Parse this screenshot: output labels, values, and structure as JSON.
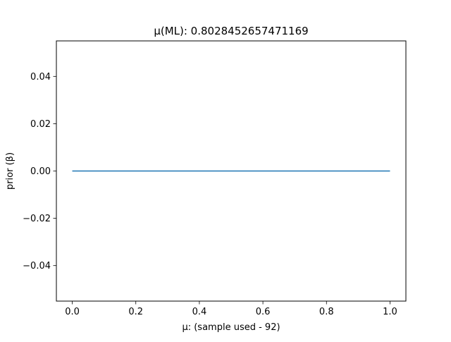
{
  "figure": {
    "background": "#ffffff"
  },
  "chart_data": {
    "type": "line",
    "title": "μ(ML): 0.8028452657471169",
    "xlabel": "μ: (sample used - 92)",
    "ylabel": "prior (β)",
    "xlim": [
      -0.05,
      1.05
    ],
    "ylim": [
      -0.055,
      0.055
    ],
    "xticks": [
      0.0,
      0.2,
      0.4,
      0.6,
      0.8,
      1.0
    ],
    "xtick_labels": [
      "0.0",
      "0.2",
      "0.4",
      "0.6",
      "0.8",
      "1.0"
    ],
    "yticks": [
      -0.04,
      -0.02,
      0.0,
      0.02,
      0.04
    ],
    "ytick_labels": [
      "−0.04",
      "−0.02",
      "0.00",
      "0.02",
      "0.04"
    ],
    "grid": false,
    "series": [
      {
        "color": "#1f77b4",
        "x": [
          0.0,
          1.0
        ],
        "y": [
          0.0,
          0.0
        ]
      }
    ]
  }
}
